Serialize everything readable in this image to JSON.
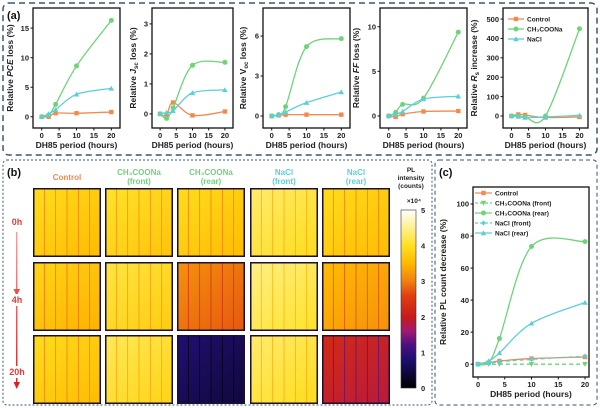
{
  "colors": {
    "control": "#f28a50",
    "ch3coona": "#6fd37a",
    "nacl": "#5ccfd6",
    "panel_border": "#3a5670",
    "row_label": "#e63a3a"
  },
  "panel_a": {
    "label": "(a)",
    "legend": [
      "Control",
      "CH₃COONa",
      "NaCl"
    ],
    "legend_location": "top-left of last plot",
    "charts": [
      {
        "type": "line",
        "ylabel": [
          {
            "t": "Relative "
          },
          {
            "t": "PCE",
            "s": "i"
          },
          {
            "t": " loss (%)"
          }
        ],
        "xlabel": "DH85 period (hours)",
        "xticks": [
          0,
          5,
          10,
          15,
          20
        ],
        "yticks": [
          0,
          5,
          10,
          15
        ],
        "xlim": [
          -2.5,
          22.5
        ],
        "ylim": [
          -1.9,
          18.4
        ],
        "x": [
          0,
          2,
          4,
          10,
          20
        ],
        "series": [
          {
            "name": "Control",
            "values": [
              0,
              0,
              0.6,
              0.6,
              0.8
            ]
          },
          {
            "name": "CH₃COONa",
            "values": [
              0,
              0.3,
              2.1,
              8.6,
              16.3
            ]
          },
          {
            "name": "NaCl",
            "values": [
              0,
              0.5,
              1.2,
              3.8,
              4.8
            ]
          }
        ]
      },
      {
        "type": "line",
        "ylabel": [
          {
            "t": "Relative "
          },
          {
            "t": "J",
            "s": "i"
          },
          {
            "t": "sc",
            "s": "sub"
          },
          {
            "t": " loss (%)"
          }
        ],
        "xlabel": "DH85 period (hours)",
        "xticks": [
          0,
          5,
          10,
          15,
          20
        ],
        "yticks": [
          0,
          1,
          2,
          3
        ],
        "xlim": [
          -2.5,
          22.5
        ],
        "ylim": [
          -0.47,
          3.53
        ],
        "x": [
          0,
          2,
          4,
          10,
          20
        ],
        "series": [
          {
            "name": "Control",
            "values": [
              0,
              -0.05,
              0.38,
              -0.05,
              0.08
            ]
          },
          {
            "name": "CH₃COONa",
            "values": [
              0,
              -0.15,
              0.2,
              1.62,
              1.72
            ]
          },
          {
            "name": "NaCl",
            "values": [
              0,
              0.05,
              0.1,
              0.7,
              0.8
            ]
          }
        ]
      },
      {
        "type": "line",
        "ylabel": [
          {
            "t": "Relative V"
          },
          {
            "t": "oc",
            "s": "sub"
          },
          {
            "t": " loss (%)"
          }
        ],
        "xlabel": "DH85 period (hours)",
        "xticks": [
          0,
          5,
          10,
          15,
          20
        ],
        "yticks": [
          0,
          3,
          6
        ],
        "xlim": [
          -2.5,
          22.5
        ],
        "ylim": [
          -0.9,
          8.1
        ],
        "x": [
          0,
          2,
          4,
          10,
          20
        ],
        "series": [
          {
            "name": "Control",
            "values": [
              0,
              0.05,
              0.1,
              0.1,
              0.1
            ]
          },
          {
            "name": "CH₃COONa",
            "values": [
              0,
              0.1,
              0.7,
              5.2,
              5.8
            ]
          },
          {
            "name": "NaCl",
            "values": [
              0,
              0.1,
              0.3,
              1.0,
              1.8
            ]
          }
        ]
      },
      {
        "type": "line",
        "ylabel": [
          {
            "t": "Relative "
          },
          {
            "t": "FF",
            "s": "i"
          },
          {
            "t": " loss (%)"
          }
        ],
        "xlabel": "DH85 period (hours)",
        "xticks": [
          0,
          5,
          10,
          15,
          20
        ],
        "yticks": [
          0,
          5,
          10
        ],
        "xlim": [
          -2.5,
          22.5
        ],
        "ylim": [
          -1.35,
          12.1
        ],
        "x": [
          0,
          2,
          4,
          10,
          20
        ],
        "series": [
          {
            "name": "Control",
            "values": [
              0,
              -0.1,
              0.2,
              0.5,
              0.55
            ]
          },
          {
            "name": "CH₃COONa",
            "values": [
              0,
              0.4,
              1.3,
              2.0,
              9.4
            ]
          },
          {
            "name": "NaCl",
            "values": [
              0,
              0.2,
              0.5,
              1.9,
              2.2
            ]
          }
        ]
      },
      {
        "type": "line",
        "ylabel": [
          {
            "t": "Relative "
          },
          {
            "t": "R",
            "s": "i"
          },
          {
            "t": "s",
            "s": "sub"
          },
          {
            "t": " increase (%)"
          }
        ],
        "xlabel": "DH85 period (hours)",
        "xticks": [
          0,
          5,
          10,
          15,
          20
        ],
        "yticks": [
          0,
          100,
          200,
          300,
          400,
          500
        ],
        "xlim": [
          -2.5,
          22.5
        ],
        "ylim": [
          -62,
          557
        ],
        "x": [
          0,
          2,
          4,
          10,
          20
        ],
        "series": [
          {
            "name": "Control",
            "values": [
              0,
              8,
              5,
              -8,
              -5
            ]
          },
          {
            "name": "CH₃COONa",
            "values": [
              0,
              0,
              -5,
              0,
              450
            ]
          },
          {
            "name": "NaCl",
            "values": [
              0,
              -3,
              -8,
              -5,
              3
            ]
          }
        ]
      }
    ]
  },
  "panel_b": {
    "label": "(b)",
    "columns": [
      {
        "line1": "Control",
        "line2": "",
        "color": "#f28a50"
      },
      {
        "line1": "CH₃COONa",
        "line2": "(front)",
        "color": "#6fd37a"
      },
      {
        "line1": "CH₃COONa",
        "line2": "(rear)",
        "color": "#6fd37a"
      },
      {
        "line1": "NaCl",
        "line2": "(front)",
        "color": "#5ccfd6"
      },
      {
        "line1": "NaCl",
        "line2": "(rear)",
        "color": "#5ccfd6"
      }
    ],
    "rows": [
      "0h",
      "4h",
      "20h"
    ],
    "pl_intensity_x1e4": [
      [
        3.8,
        3.9,
        3.8,
        4.2,
        3.8
      ],
      [
        3.7,
        4.0,
        3.0,
        4.3,
        3.4
      ],
      [
        3.8,
        4.1,
        0.7,
        4.2,
        2.1
      ]
    ],
    "colorbar": {
      "title": [
        "PL",
        "intensity",
        "(counts)"
      ],
      "multiplier": "×10⁴",
      "ticks": [
        0,
        1,
        2,
        3,
        4,
        5
      ],
      "range": [
        0,
        5
      ],
      "colormap": "hot"
    }
  },
  "chart_data": {
    "type": "line",
    "label": "(c)",
    "ylabel": "Relative PL count decrease (%)",
    "xlabel": "DH85 period (hours)",
    "xticks": [
      0,
      5,
      10,
      15,
      20
    ],
    "yticks": [
      0,
      20,
      40,
      60,
      80,
      100
    ],
    "xlim": [
      -0.94,
      20.75
    ],
    "ylim": [
      -8,
      110.6
    ],
    "legend_location": "top-left",
    "x": [
      0,
      2,
      4,
      10,
      20
    ],
    "series": [
      {
        "name": "Control",
        "values": [
          0,
          1,
          2,
          3.5,
          4.5
        ],
        "marker": "square",
        "color": "#f28a50"
      },
      {
        "name": "CH₃COONa (front)",
        "values": [
          0,
          0,
          0,
          0,
          0
        ],
        "marker": "triangle-down",
        "dashed": true,
        "color": "#6fd37a"
      },
      {
        "name": "CH₃COONa (rear)",
        "values": [
          0,
          1,
          16,
          73.5,
          76.5
        ],
        "marker": "circle",
        "color": "#6fd37a"
      },
      {
        "name": "NaCl (front)",
        "values": [
          0,
          0.5,
          1.5,
          3,
          5
        ],
        "marker": "diamond",
        "dashed": true,
        "color": "#5ccfd6"
      },
      {
        "name": "NaCl (rear)",
        "values": [
          0,
          2,
          7,
          25.5,
          38.5
        ],
        "marker": "triangle",
        "color": "#5ccfd6"
      }
    ]
  }
}
